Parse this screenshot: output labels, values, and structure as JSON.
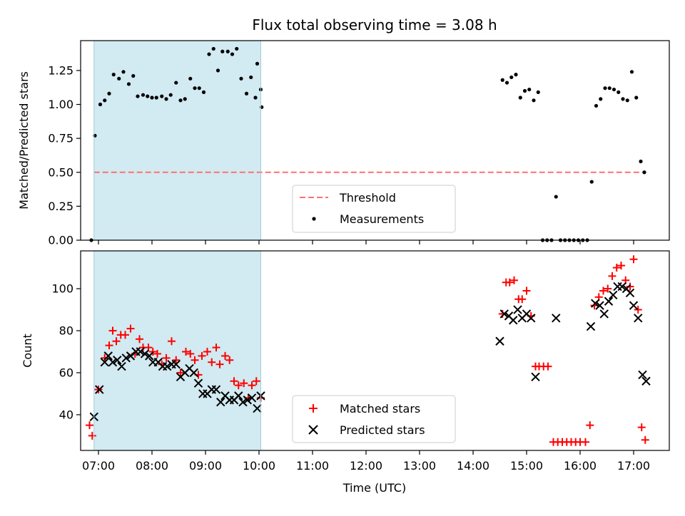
{
  "chart_data": [
    {
      "type": "scatter",
      "title": "Flux total observing time = 3.08 h",
      "ylabel": "Matched/Predicted stars",
      "xlabel": "",
      "ylim": [
        0,
        1.47
      ],
      "xlim": [
        "06:40",
        "17:40"
      ],
      "grid": false,
      "legend_position": "bottom-center",
      "yticks": [
        "0.00",
        "0.25",
        "0.50",
        "0.75",
        "1.00",
        "1.25"
      ],
      "shaded_interval": {
        "start": "06:55",
        "end": "10:02",
        "color": "#add8e6"
      },
      "threshold": {
        "name": "Threshold",
        "y": 0.5,
        "color": "#ff7070",
        "style": "dashed"
      },
      "series": [
        {
          "name": "Measurements",
          "color": "#000000",
          "marker": "dot",
          "points": [
            [
              "06:52",
              0.0
            ],
            [
              "06:56",
              0.77
            ],
            [
              "07:02",
              1.0
            ],
            [
              "07:07",
              1.03
            ],
            [
              "07:12",
              1.08
            ],
            [
              "07:17",
              1.22
            ],
            [
              "07:23",
              1.19
            ],
            [
              "07:28",
              1.24
            ],
            [
              "07:34",
              1.15
            ],
            [
              "07:39",
              1.21
            ],
            [
              "07:44",
              1.06
            ],
            [
              "07:50",
              1.07
            ],
            [
              "07:55",
              1.06
            ],
            [
              "08:00",
              1.05
            ],
            [
              "08:05",
              1.05
            ],
            [
              "08:11",
              1.06
            ],
            [
              "08:16",
              1.04
            ],
            [
              "08:21",
              1.07
            ],
            [
              "08:27",
              1.16
            ],
            [
              "08:32",
              1.03
            ],
            [
              "08:37",
              1.04
            ],
            [
              "08:43",
              1.19
            ],
            [
              "08:48",
              1.12
            ],
            [
              "08:53",
              1.12
            ],
            [
              "08:58",
              1.09
            ],
            [
              "09:04",
              1.37
            ],
            [
              "09:09",
              1.41
            ],
            [
              "09:14",
              1.25
            ],
            [
              "09:19",
              1.39
            ],
            [
              "09:25",
              1.39
            ],
            [
              "09:30",
              1.37
            ],
            [
              "09:35",
              1.41
            ],
            [
              "09:40",
              1.19
            ],
            [
              "09:46",
              1.08
            ],
            [
              "09:51",
              1.2
            ],
            [
              "09:56",
              1.05
            ],
            [
              "10:02",
              1.11
            ],
            [
              "09:58",
              1.3
            ],
            [
              "10:03",
              0.98
            ],
            [
              "14:33",
              1.18
            ],
            [
              "14:38",
              1.16
            ],
            [
              "14:43",
              1.2
            ],
            [
              "14:48",
              1.22
            ],
            [
              "14:53",
              1.05
            ],
            [
              "14:58",
              1.1
            ],
            [
              "15:03",
              1.11
            ],
            [
              "15:08",
              1.03
            ],
            [
              "15:13",
              1.09
            ],
            [
              "15:18",
              0.0
            ],
            [
              "15:23",
              0.0
            ],
            [
              "15:28",
              0.0
            ],
            [
              "15:33",
              0.32
            ],
            [
              "15:38",
              0.0
            ],
            [
              "15:43",
              0.0
            ],
            [
              "15:48",
              0.0
            ],
            [
              "15:53",
              0.0
            ],
            [
              "15:58",
              0.0
            ],
            [
              "16:03",
              0.0
            ],
            [
              "16:08",
              0.0
            ],
            [
              "16:13",
              0.43
            ],
            [
              "16:18",
              0.99
            ],
            [
              "16:23",
              1.04
            ],
            [
              "16:28",
              1.12
            ],
            [
              "16:33",
              1.12
            ],
            [
              "16:38",
              1.11
            ],
            [
              "16:43",
              1.09
            ],
            [
              "16:48",
              1.04
            ],
            [
              "16:53",
              1.03
            ],
            [
              "16:58",
              1.24
            ],
            [
              "17:03",
              1.05
            ],
            [
              "17:08",
              0.58
            ],
            [
              "17:12",
              0.5
            ]
          ]
        }
      ]
    },
    {
      "type": "scatter",
      "title": "",
      "xlabel": "Time (UTC)",
      "ylabel": "Count",
      "ylim": [
        23,
        118
      ],
      "xlim": [
        "06:40",
        "17:40"
      ],
      "grid": false,
      "legend_position": "bottom-center",
      "yticks": [
        "40",
        "60",
        "80",
        "100"
      ],
      "xticks": [
        "07:00",
        "08:00",
        "09:00",
        "10:00",
        "11:00",
        "12:00",
        "13:00",
        "14:00",
        "15:00",
        "16:00",
        "17:00"
      ],
      "shaded_interval": {
        "start": "06:55",
        "end": "10:02",
        "color": "#add8e6"
      },
      "series": [
        {
          "name": "Matched stars",
          "color": "#ff0000",
          "marker": "plus",
          "points": [
            [
              "06:50",
              35
            ],
            [
              "06:53",
              30
            ],
            [
              "07:00",
              52
            ],
            [
              "07:07",
              67
            ],
            [
              "07:12",
              73
            ],
            [
              "07:16",
              80
            ],
            [
              "07:20",
              75
            ],
            [
              "07:25",
              78
            ],
            [
              "07:30",
              78
            ],
            [
              "07:36",
              81
            ],
            [
              "07:41",
              69
            ],
            [
              "07:46",
              76
            ],
            [
              "07:50",
              72
            ],
            [
              "07:56",
              72
            ],
            [
              "08:01",
              70
            ],
            [
              "08:06",
              69
            ],
            [
              "08:11",
              64
            ],
            [
              "08:16",
              67
            ],
            [
              "08:22",
              75
            ],
            [
              "08:27",
              66
            ],
            [
              "08:32",
              60
            ],
            [
              "08:38",
              70
            ],
            [
              "08:43",
              69
            ],
            [
              "08:48",
              66
            ],
            [
              "08:52",
              59
            ],
            [
              "08:56",
              68
            ],
            [
              "09:02",
              70
            ],
            [
              "09:07",
              65
            ],
            [
              "09:12",
              72
            ],
            [
              "09:16",
              64
            ],
            [
              "09:22",
              68
            ],
            [
              "09:27",
              66
            ],
            [
              "09:32",
              56
            ],
            [
              "09:37",
              54
            ],
            [
              "09:43",
              55
            ],
            [
              "09:48",
              48
            ],
            [
              "09:52",
              54
            ],
            [
              "09:57",
              56
            ],
            [
              "10:02",
              48
            ],
            [
              "14:33",
              88
            ],
            [
              "14:37",
              103
            ],
            [
              "14:41",
              103
            ],
            [
              "14:46",
              104
            ],
            [
              "14:51",
              95
            ],
            [
              "14:55",
              95
            ],
            [
              "15:00",
              99
            ],
            [
              "15:05",
              87
            ],
            [
              "15:10",
              63
            ],
            [
              "15:14",
              63
            ],
            [
              "15:19",
              63
            ],
            [
              "15:24",
              63
            ],
            [
              "15:30",
              27
            ],
            [
              "15:35",
              27
            ],
            [
              "15:40",
              27
            ],
            [
              "15:45",
              27
            ],
            [
              "15:50",
              27
            ],
            [
              "15:55",
              27
            ],
            [
              "16:00",
              27
            ],
            [
              "16:06",
              27
            ],
            [
              "16:11",
              35
            ],
            [
              "16:16",
              92
            ],
            [
              "16:21",
              96
            ],
            [
              "16:26",
              99
            ],
            [
              "16:31",
              100
            ],
            [
              "16:36",
              106
            ],
            [
              "16:41",
              110
            ],
            [
              "16:46",
              111
            ],
            [
              "16:51",
              104
            ],
            [
              "16:56",
              101
            ],
            [
              "17:00",
              114
            ],
            [
              "17:05",
              90
            ],
            [
              "17:09",
              34
            ],
            [
              "17:13",
              28
            ]
          ]
        },
        {
          "name": "Predicted stars",
          "color": "#000000",
          "marker": "x",
          "points": [
            [
              "06:55",
              39
            ],
            [
              "07:01",
              52
            ],
            [
              "07:07",
              65
            ],
            [
              "07:11",
              68
            ],
            [
              "07:16",
              65
            ],
            [
              "07:21",
              66
            ],
            [
              "07:26",
              63
            ],
            [
              "07:31",
              67
            ],
            [
              "07:36",
              68
            ],
            [
              "07:42",
              70
            ],
            [
              "07:47",
              70
            ],
            [
              "07:52",
              69
            ],
            [
              "07:57",
              68
            ],
            [
              "08:01",
              65
            ],
            [
              "08:07",
              65
            ],
            [
              "08:12",
              63
            ],
            [
              "08:17",
              63
            ],
            [
              "08:22",
              64
            ],
            [
              "08:27",
              64
            ],
            [
              "08:32",
              58
            ],
            [
              "08:37",
              60
            ],
            [
              "08:42",
              62
            ],
            [
              "08:47",
              60
            ],
            [
              "08:52",
              55
            ],
            [
              "08:57",
              50
            ],
            [
              "09:02",
              50
            ],
            [
              "09:07",
              52
            ],
            [
              "09:12",
              52
            ],
            [
              "09:17",
              46
            ],
            [
              "09:22",
              49
            ],
            [
              "09:27",
              47
            ],
            [
              "09:32",
              47
            ],
            [
              "09:37",
              49
            ],
            [
              "09:42",
              46
            ],
            [
              "09:47",
              47
            ],
            [
              "09:52",
              48
            ],
            [
              "09:58",
              43
            ],
            [
              "10:02",
              49
            ],
            [
              "14:30",
              75
            ],
            [
              "14:35",
              88
            ],
            [
              "14:40",
              87
            ],
            [
              "14:45",
              85
            ],
            [
              "14:50",
              90
            ],
            [
              "14:55",
              86
            ],
            [
              "15:00",
              88
            ],
            [
              "15:05",
              86
            ],
            [
              "15:10",
              58
            ],
            [
              "15:33",
              86
            ],
            [
              "16:12",
              82
            ],
            [
              "16:17",
              93
            ],
            [
              "16:22",
              92
            ],
            [
              "16:27",
              88
            ],
            [
              "16:32",
              94
            ],
            [
              "16:37",
              97
            ],
            [
              "16:42",
              101
            ],
            [
              "16:47",
              101
            ],
            [
              "16:52",
              100
            ],
            [
              "16:56",
              98
            ],
            [
              "17:00",
              92
            ],
            [
              "17:05",
              86
            ],
            [
              "17:10",
              59
            ],
            [
              "17:14",
              56
            ]
          ]
        }
      ]
    }
  ]
}
